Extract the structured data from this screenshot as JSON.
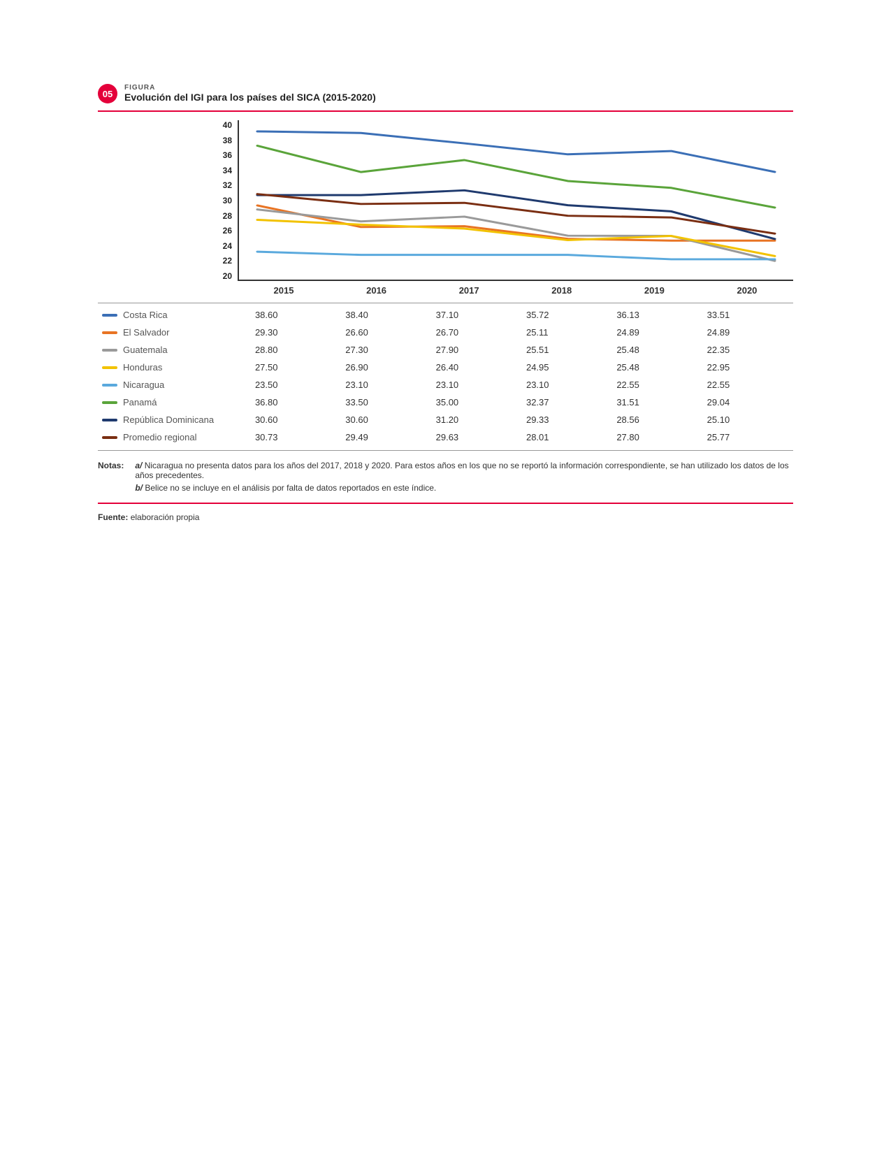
{
  "header": {
    "badge": "05",
    "kicker": "FIGURA",
    "title": "Evolución del IGI para los países del SICA (2015-2020)"
  },
  "chart": {
    "type": "line",
    "ylim": [
      20,
      40
    ],
    "ytick_step": 2,
    "yticks": [
      "40",
      "38",
      "36",
      "34",
      "32",
      "30",
      "28",
      "26",
      "24",
      "22",
      "20"
    ],
    "categories": [
      "2015",
      "2016",
      "2017",
      "2018",
      "2019",
      "2020"
    ],
    "line_width": 3,
    "background_color": "#ffffff",
    "axis_color": "#333333",
    "series": [
      {
        "name": "Costa Rica",
        "color": "#3b6fb6",
        "values": [
          38.6,
          38.4,
          37.1,
          35.72,
          36.13,
          33.51
        ]
      },
      {
        "name": "El Salvador",
        "color": "#e87424",
        "values": [
          29.3,
          26.6,
          26.7,
          25.11,
          24.89,
          24.89
        ]
      },
      {
        "name": "Guatemala",
        "color": "#9a9a9a",
        "values": [
          28.8,
          27.3,
          27.9,
          25.51,
          25.48,
          22.35
        ]
      },
      {
        "name": "Honduras",
        "color": "#f2c200",
        "values": [
          27.5,
          26.9,
          26.4,
          24.95,
          25.48,
          22.95
        ]
      },
      {
        "name": "Nicaragua",
        "color": "#5aa9dd",
        "values": [
          23.5,
          23.1,
          23.1,
          23.1,
          22.55,
          22.55
        ]
      },
      {
        "name": "Panamá",
        "color": "#5aa43a",
        "values": [
          36.8,
          33.5,
          35.0,
          32.37,
          31.51,
          29.04
        ]
      },
      {
        "name": "República Dominicana",
        "color": "#1f3a6e",
        "values": [
          30.6,
          30.6,
          31.2,
          29.33,
          28.56,
          25.1
        ]
      },
      {
        "name": "Promedio regional",
        "color": "#7a2e12",
        "values": [
          30.73,
          29.49,
          29.63,
          28.01,
          27.8,
          25.77
        ]
      }
    ]
  },
  "notes": {
    "label": "Notas:",
    "items": [
      {
        "key": "a/",
        "text": "Nicaragua no presenta datos para los años del 2017, 2018 y 2020. Para estos años en los que no se reportó la información correspondiente, se han utilizado los datos de los años precedentes."
      },
      {
        "key": "b/",
        "text": "Belice no se incluye en el análisis por falta de datos reportados en este índice."
      }
    ]
  },
  "source": {
    "label": "Fuente:",
    "text": "elaboración propia"
  }
}
